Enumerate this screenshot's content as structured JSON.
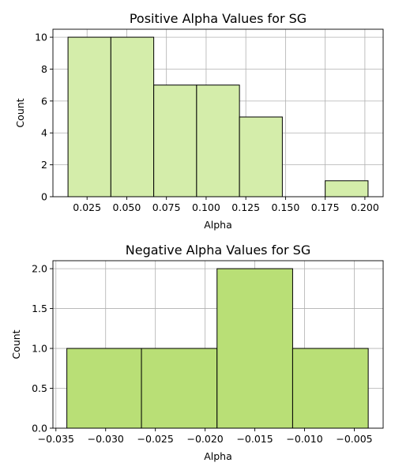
{
  "chart_data": [
    {
      "type": "bar",
      "subtype": "histogram",
      "title": "Positive Alpha Values for SG",
      "xlabel": "Alpha",
      "ylabel": "Count",
      "color": "#d4edaa",
      "bins": [
        {
          "start": 0.013,
          "end": 0.04,
          "count": 10
        },
        {
          "start": 0.04,
          "end": 0.067,
          "count": 10
        },
        {
          "start": 0.067,
          "end": 0.094,
          "count": 7
        },
        {
          "start": 0.094,
          "end": 0.121,
          "count": 7
        },
        {
          "start": 0.121,
          "end": 0.148,
          "count": 5
        },
        {
          "start": 0.148,
          "end": 0.175,
          "count": 0
        },
        {
          "start": 0.175,
          "end": 0.202,
          "count": 1
        }
      ],
      "xlim": [
        0.0035,
        0.2115
      ],
      "ylim": [
        0,
        10.5
      ],
      "xticks": [
        0.025,
        0.05,
        0.075,
        0.1,
        0.125,
        0.15,
        0.175,
        0.2
      ],
      "xtick_labels": [
        "0.025",
        "0.050",
        "0.075",
        "0.100",
        "0.125",
        "0.150",
        "0.175",
        "0.200"
      ],
      "yticks": [
        0,
        2,
        4,
        6,
        8,
        10
      ],
      "ytick_labels": [
        "0",
        "2",
        "4",
        "6",
        "8",
        "10"
      ],
      "grid": true
    },
    {
      "type": "bar",
      "subtype": "histogram",
      "title": "Negative Alpha Values for SG",
      "xlabel": "Alpha",
      "ylabel": "Count",
      "color": "#b9df76",
      "bins": [
        {
          "start": -0.0339,
          "end": -0.0264,
          "count": 1
        },
        {
          "start": -0.0264,
          "end": -0.0188,
          "count": 1
        },
        {
          "start": -0.0188,
          "end": -0.0112,
          "count": 2
        },
        {
          "start": -0.0112,
          "end": -0.0036,
          "count": 1
        }
      ],
      "xlim": [
        -0.0353,
        -0.0021
      ],
      "ylim": [
        0,
        2.1
      ],
      "xticks": [
        -0.035,
        -0.03,
        -0.025,
        -0.02,
        -0.015,
        -0.01,
        -0.005
      ],
      "xtick_labels": [
        "−0.035",
        "−0.030",
        "−0.025",
        "−0.020",
        "−0.015",
        "−0.010",
        "−0.005"
      ],
      "yticks": [
        0,
        0.5,
        1.0,
        1.5,
        2.0
      ],
      "ytick_labels": [
        "0.0",
        "0.5",
        "1.0",
        "1.5",
        "2.0"
      ],
      "grid": true
    }
  ]
}
